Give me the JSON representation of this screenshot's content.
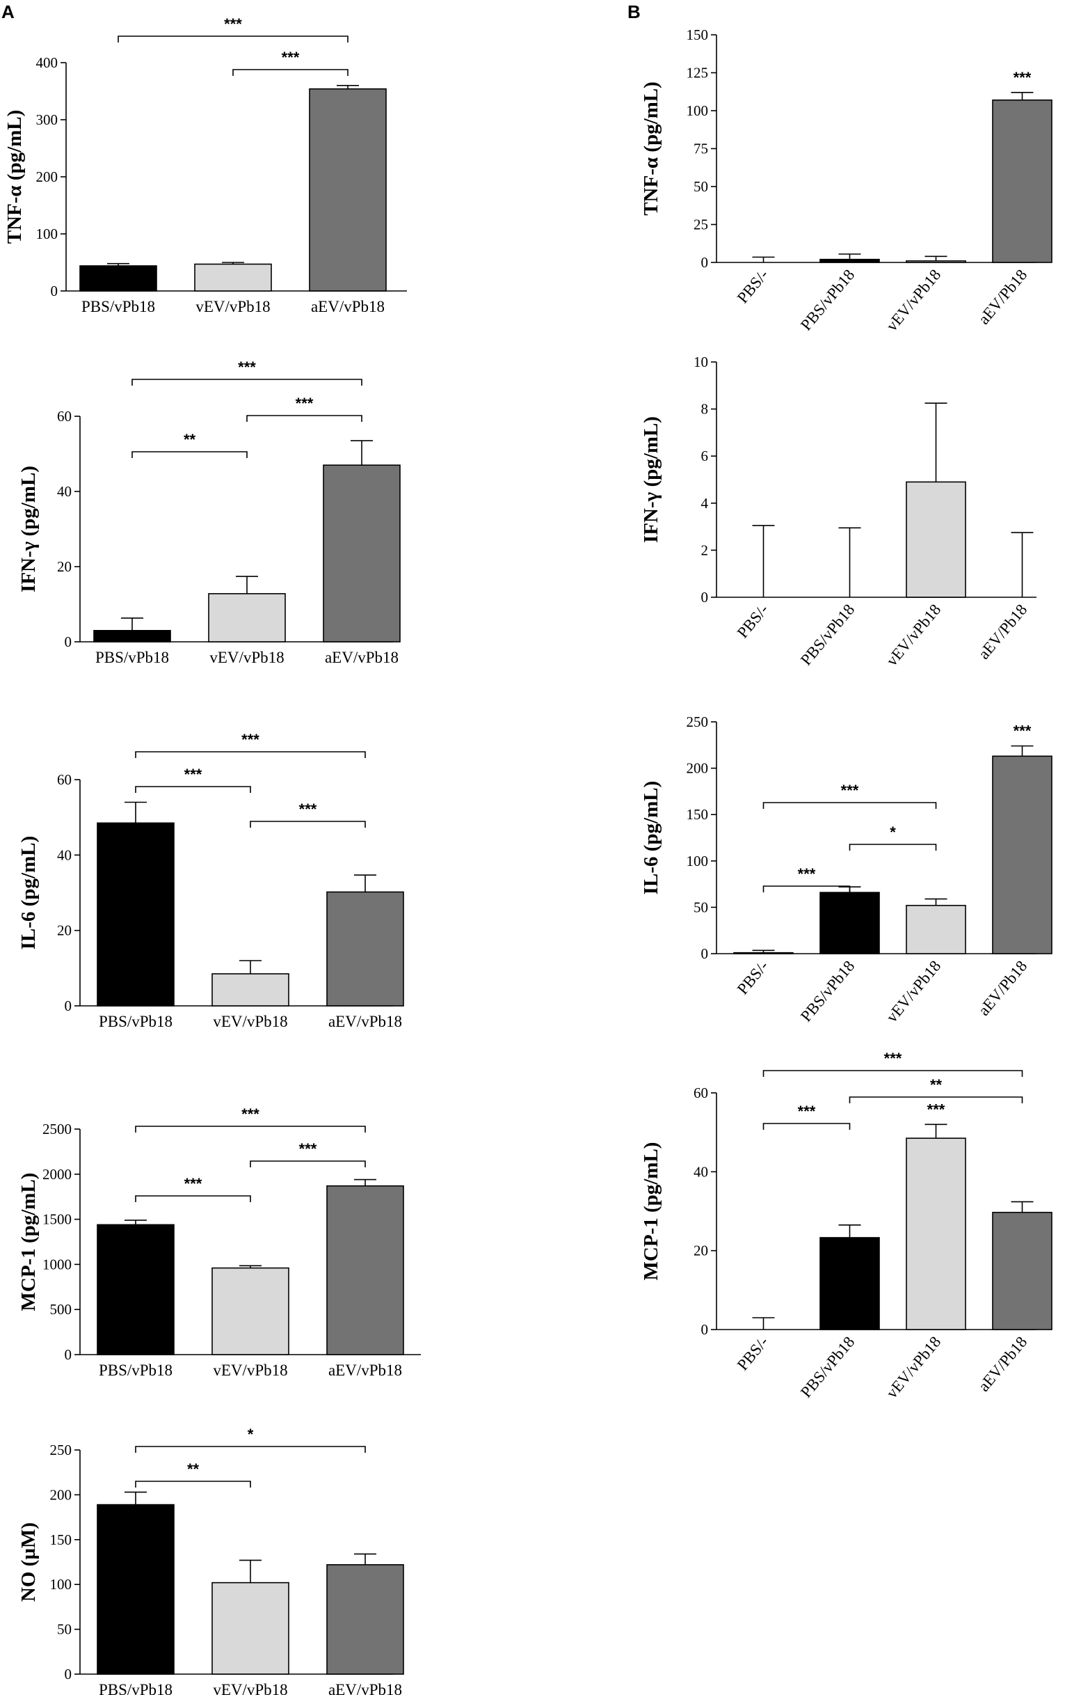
{
  "panels": [
    {
      "label": "A"
    },
    {
      "label": "B"
    }
  ],
  "chart_data": [
    {
      "id": "A-tnf",
      "panel": "A",
      "type": "bar",
      "ylabel": "TNF-α (pg/mL)",
      "ylim": [
        0,
        400
      ],
      "ticks": [
        0,
        100,
        200,
        300,
        400
      ],
      "categories": [
        "PBS/vPb18",
        "vEV/vPb18",
        "aEV/vPb18"
      ],
      "values": [
        44,
        47,
        354
      ],
      "errors": [
        4,
        3,
        6
      ],
      "colors": [
        "#000000",
        "#d9d9d9",
        "#737373"
      ],
      "significance": [
        {
          "from": 0,
          "to": 2,
          "label": "***"
        },
        {
          "from": 1,
          "to": 2,
          "label": "***"
        }
      ]
    },
    {
      "id": "A-ifn",
      "panel": "A",
      "type": "bar",
      "ylabel": "IFN-γ (pg/mL)",
      "ylim": [
        0,
        60
      ],
      "ticks": [
        0,
        20,
        40,
        60
      ],
      "categories": [
        "PBS/vPb18",
        "vEV/vPb18",
        "aEV/vPb18"
      ],
      "values": [
        3,
        12.8,
        47
      ],
      "errors": [
        3.3,
        4.6,
        6.5
      ],
      "colors": [
        "#000000",
        "#d9d9d9",
        "#737373"
      ],
      "significance": [
        {
          "from": 0,
          "to": 2,
          "label": "***"
        },
        {
          "from": 1,
          "to": 2,
          "label": "***"
        },
        {
          "from": 0,
          "to": 1,
          "label": "**"
        }
      ]
    },
    {
      "id": "A-il6",
      "panel": "A",
      "type": "bar",
      "ylabel": "IL-6 (pg/mL)",
      "ylim": [
        0,
        60
      ],
      "ticks": [
        0,
        20,
        40,
        60
      ],
      "categories": [
        "PBS/vPb18",
        "vEV/vPb18",
        "aEV/vPb18"
      ],
      "values": [
        48.5,
        8.5,
        30.2
      ],
      "errors": [
        5.5,
        3.5,
        4.5
      ],
      "colors": [
        "#000000",
        "#d9d9d9",
        "#737373"
      ],
      "significance": [
        {
          "from": 0,
          "to": 2,
          "label": "***"
        },
        {
          "from": 0,
          "to": 1,
          "label": "***"
        },
        {
          "from": 1,
          "to": 2,
          "label": "***"
        }
      ]
    },
    {
      "id": "A-mcp",
      "panel": "A",
      "type": "bar",
      "ylabel": "MCP-1 (pg/mL)",
      "ylim": [
        0,
        2500
      ],
      "ticks": [
        0,
        500,
        1000,
        1500,
        2000,
        2500
      ],
      "categories": [
        "PBS/vPb18",
        "vEV/vPb18",
        "aEV/vPb18"
      ],
      "values": [
        1440,
        960,
        1870
      ],
      "errors": [
        50,
        25,
        70
      ],
      "colors": [
        "#000000",
        "#d9d9d9",
        "#737373"
      ],
      "significance": [
        {
          "from": 0,
          "to": 2,
          "label": "***"
        },
        {
          "from": 1,
          "to": 2,
          "label": "***"
        },
        {
          "from": 0,
          "to": 1,
          "label": "***"
        }
      ]
    },
    {
      "id": "A-no",
      "panel": "A",
      "type": "bar",
      "ylabel": "NO (µM)",
      "ylim": [
        0,
        250
      ],
      "ticks": [
        0,
        50,
        100,
        150,
        200,
        250
      ],
      "categories": [
        "PBS/vPb18",
        "vEV/vPb18",
        "aEV/vPb18"
      ],
      "values": [
        189,
        102,
        122
      ],
      "errors": [
        14,
        25,
        12
      ],
      "colors": [
        "#000000",
        "#d9d9d9",
        "#737373"
      ],
      "significance": [
        {
          "from": 0,
          "to": 2,
          "label": "*"
        },
        {
          "from": 0,
          "to": 1,
          "label": "**"
        }
      ]
    },
    {
      "id": "B-tnf",
      "panel": "B",
      "type": "bar",
      "ylabel": "TNF-α (pg/mL)",
      "ylim": [
        0,
        150
      ],
      "ticks": [
        0,
        25,
        50,
        75,
        100,
        125,
        150
      ],
      "categories": [
        "PBS/-",
        "PBS/vPb18",
        "vEV/vPb18",
        "aEV/Pb18"
      ],
      "values": [
        0,
        2,
        1,
        107
      ],
      "errors": [
        3.5,
        3.5,
        3,
        5
      ],
      "colors": [
        "#d9d9d9",
        "#000000",
        "#d9d9d9",
        "#737373"
      ],
      "significance": [
        {
          "bar": 3,
          "label": "***"
        }
      ]
    },
    {
      "id": "B-ifn",
      "panel": "B",
      "type": "bar",
      "ylabel": "IFN-γ (pg/mL)",
      "ylim": [
        0,
        10
      ],
      "ticks": [
        0,
        2,
        4,
        6,
        8,
        10
      ],
      "categories": [
        "PBS/-",
        "PBS/vPb18",
        "vEV/vPb18",
        "aEV/Pb18"
      ],
      "values": [
        0,
        0,
        4.9,
        0
      ],
      "errors": [
        3.05,
        2.95,
        3.35,
        2.75
      ],
      "colors": [
        "#d9d9d9",
        "#000000",
        "#d9d9d9",
        "#737373"
      ],
      "significance": []
    },
    {
      "id": "B-il6",
      "panel": "B",
      "type": "bar",
      "ylabel": "IL-6 (pg/mL)",
      "ylim": [
        0,
        250
      ],
      "ticks": [
        0,
        50,
        100,
        150,
        200,
        250
      ],
      "categories": [
        "PBS/-",
        "PBS/vPb18",
        "vEV/vPb18",
        "aEV/Pb18"
      ],
      "values": [
        1,
        66,
        52,
        213
      ],
      "errors": [
        2.5,
        6,
        7,
        11
      ],
      "colors": [
        "#d9d9d9",
        "#000000",
        "#d9d9d9",
        "#737373"
      ],
      "significance": [
        {
          "bar": 3,
          "label": "***"
        },
        {
          "from": 0,
          "to": 2,
          "label": "***"
        },
        {
          "from": 1,
          "to": 2,
          "label": "*"
        },
        {
          "from": 0,
          "to": 1,
          "label": "***"
        }
      ]
    },
    {
      "id": "B-mcp",
      "panel": "B",
      "type": "bar",
      "ylabel": "MCP-1 (pg/mL)",
      "ylim": [
        0,
        60
      ],
      "ticks": [
        0,
        20,
        40,
        60
      ],
      "categories": [
        "PBS/-",
        "PBS/vPb18",
        "vEV/vPb18",
        "aEV/Pb18"
      ],
      "values": [
        0,
        23.3,
        48.5,
        29.7
      ],
      "errors": [
        3,
        3.2,
        3.5,
        2.7
      ],
      "colors": [
        "#d9d9d9",
        "#000000",
        "#d9d9d9",
        "#737373"
      ],
      "significance": [
        {
          "from": 0,
          "to": 3,
          "label": "***"
        },
        {
          "from": 1,
          "to": 3,
          "label": "**"
        },
        {
          "bar": 2,
          "label": "***"
        },
        {
          "from": 0,
          "to": 1,
          "label": "***"
        }
      ]
    }
  ]
}
